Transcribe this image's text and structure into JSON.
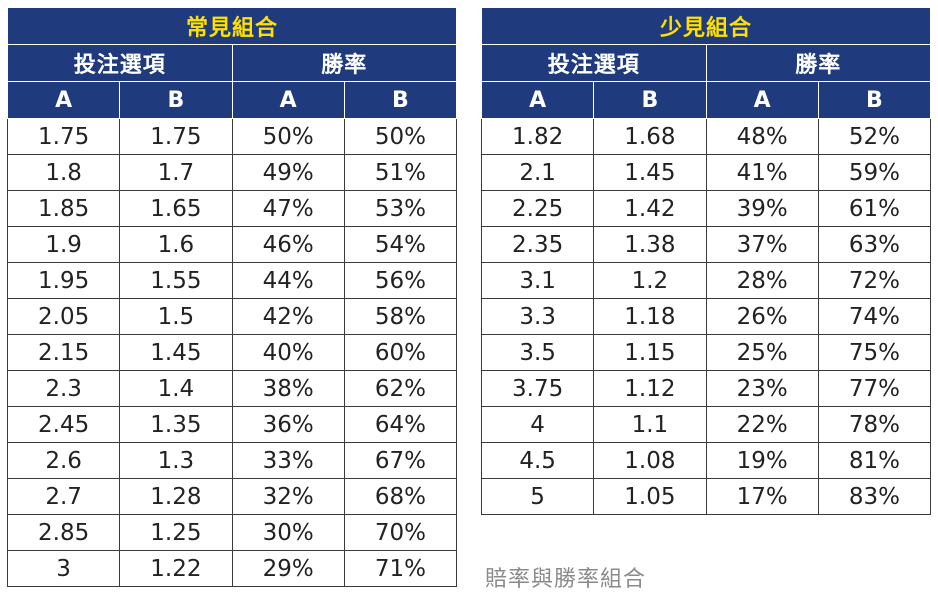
{
  "caption": "賠率與勝率組合",
  "tables": [
    {
      "title": "常見組合",
      "group_headers": [
        "投注選項",
        "勝率"
      ],
      "column_headers": [
        "A",
        "B",
        "A",
        "B"
      ],
      "rows": [
        [
          "1.75",
          "1.75",
          "50%",
          "50%"
        ],
        [
          "1.8",
          "1.7",
          "49%",
          "51%"
        ],
        [
          "1.85",
          "1.65",
          "47%",
          "53%"
        ],
        [
          "1.9",
          "1.6",
          "46%",
          "54%"
        ],
        [
          "1.95",
          "1.55",
          "44%",
          "56%"
        ],
        [
          "2.05",
          "1.5",
          "42%",
          "58%"
        ],
        [
          "2.15",
          "1.45",
          "40%",
          "60%"
        ],
        [
          "2.3",
          "1.4",
          "38%",
          "62%"
        ],
        [
          "2.45",
          "1.35",
          "36%",
          "64%"
        ],
        [
          "2.6",
          "1.3",
          "33%",
          "67%"
        ],
        [
          "2.7",
          "1.28",
          "32%",
          "68%"
        ],
        [
          "2.85",
          "1.25",
          "30%",
          "70%"
        ],
        [
          "3",
          "1.22",
          "29%",
          "71%"
        ]
      ]
    },
    {
      "title": "少見組合",
      "group_headers": [
        "投注選項",
        "勝率"
      ],
      "column_headers": [
        "A",
        "B",
        "A",
        "B"
      ],
      "rows": [
        [
          "1.82",
          "1.68",
          "48%",
          "52%"
        ],
        [
          "2.1",
          "1.45",
          "41%",
          "59%"
        ],
        [
          "2.25",
          "1.42",
          "39%",
          "61%"
        ],
        [
          "2.35",
          "1.38",
          "37%",
          "63%"
        ],
        [
          "3.1",
          "1.2",
          "28%",
          "72%"
        ],
        [
          "3.3",
          "1.18",
          "26%",
          "74%"
        ],
        [
          "3.5",
          "1.15",
          "25%",
          "75%"
        ],
        [
          "3.75",
          "1.12",
          "23%",
          "77%"
        ],
        [
          "4",
          "1.1",
          "22%",
          "78%"
        ],
        [
          "4.5",
          "1.08",
          "19%",
          "81%"
        ],
        [
          "5",
          "1.05",
          "17%",
          "83%"
        ]
      ]
    }
  ],
  "colors": {
    "header_bg": "#1f3b7d",
    "title_text": "#ffe000",
    "header_text": "#ffffff",
    "cell_text": "#222222",
    "caption_text": "#8a8a8a"
  }
}
